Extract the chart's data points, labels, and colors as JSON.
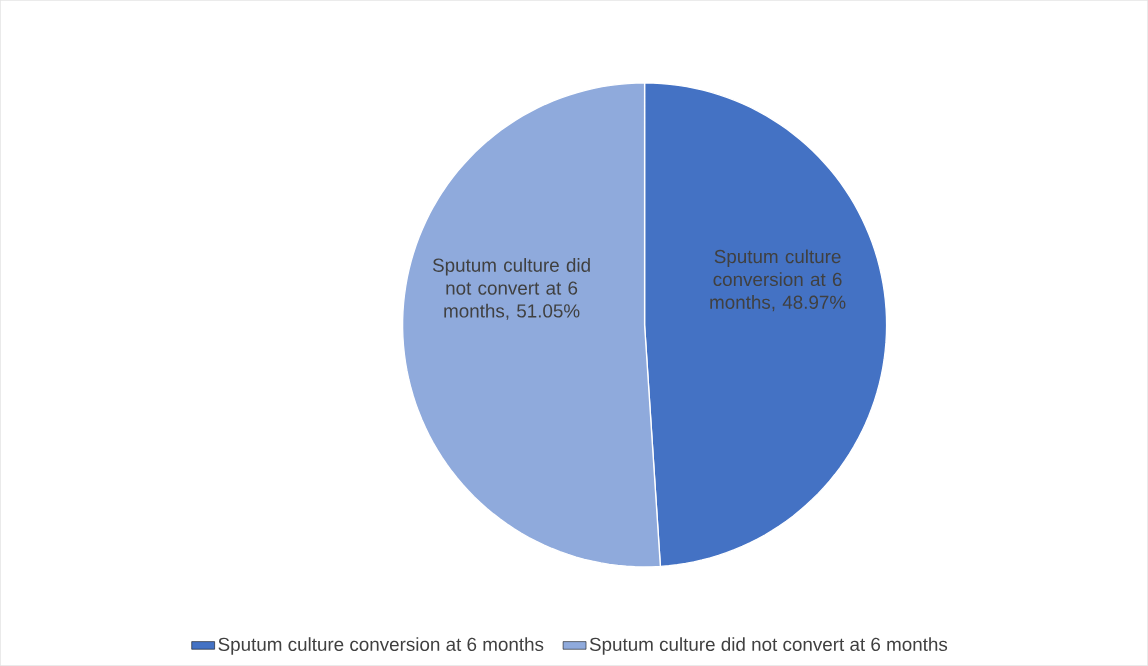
{
  "chart_data": {
    "type": "pie",
    "categories": [
      "Sputum culture conversion at 6 months",
      "Sputum culture did not convert at 6 months"
    ],
    "values": [
      48.97,
      51.05
    ],
    "value_labels": [
      "Sputum culture conversion at 6 months, 48.97%",
      "Sputum culture did not convert at 6 months, 51.05%"
    ],
    "colors": [
      "#4472c4",
      "#8faadc"
    ],
    "legend": "bottom"
  }
}
